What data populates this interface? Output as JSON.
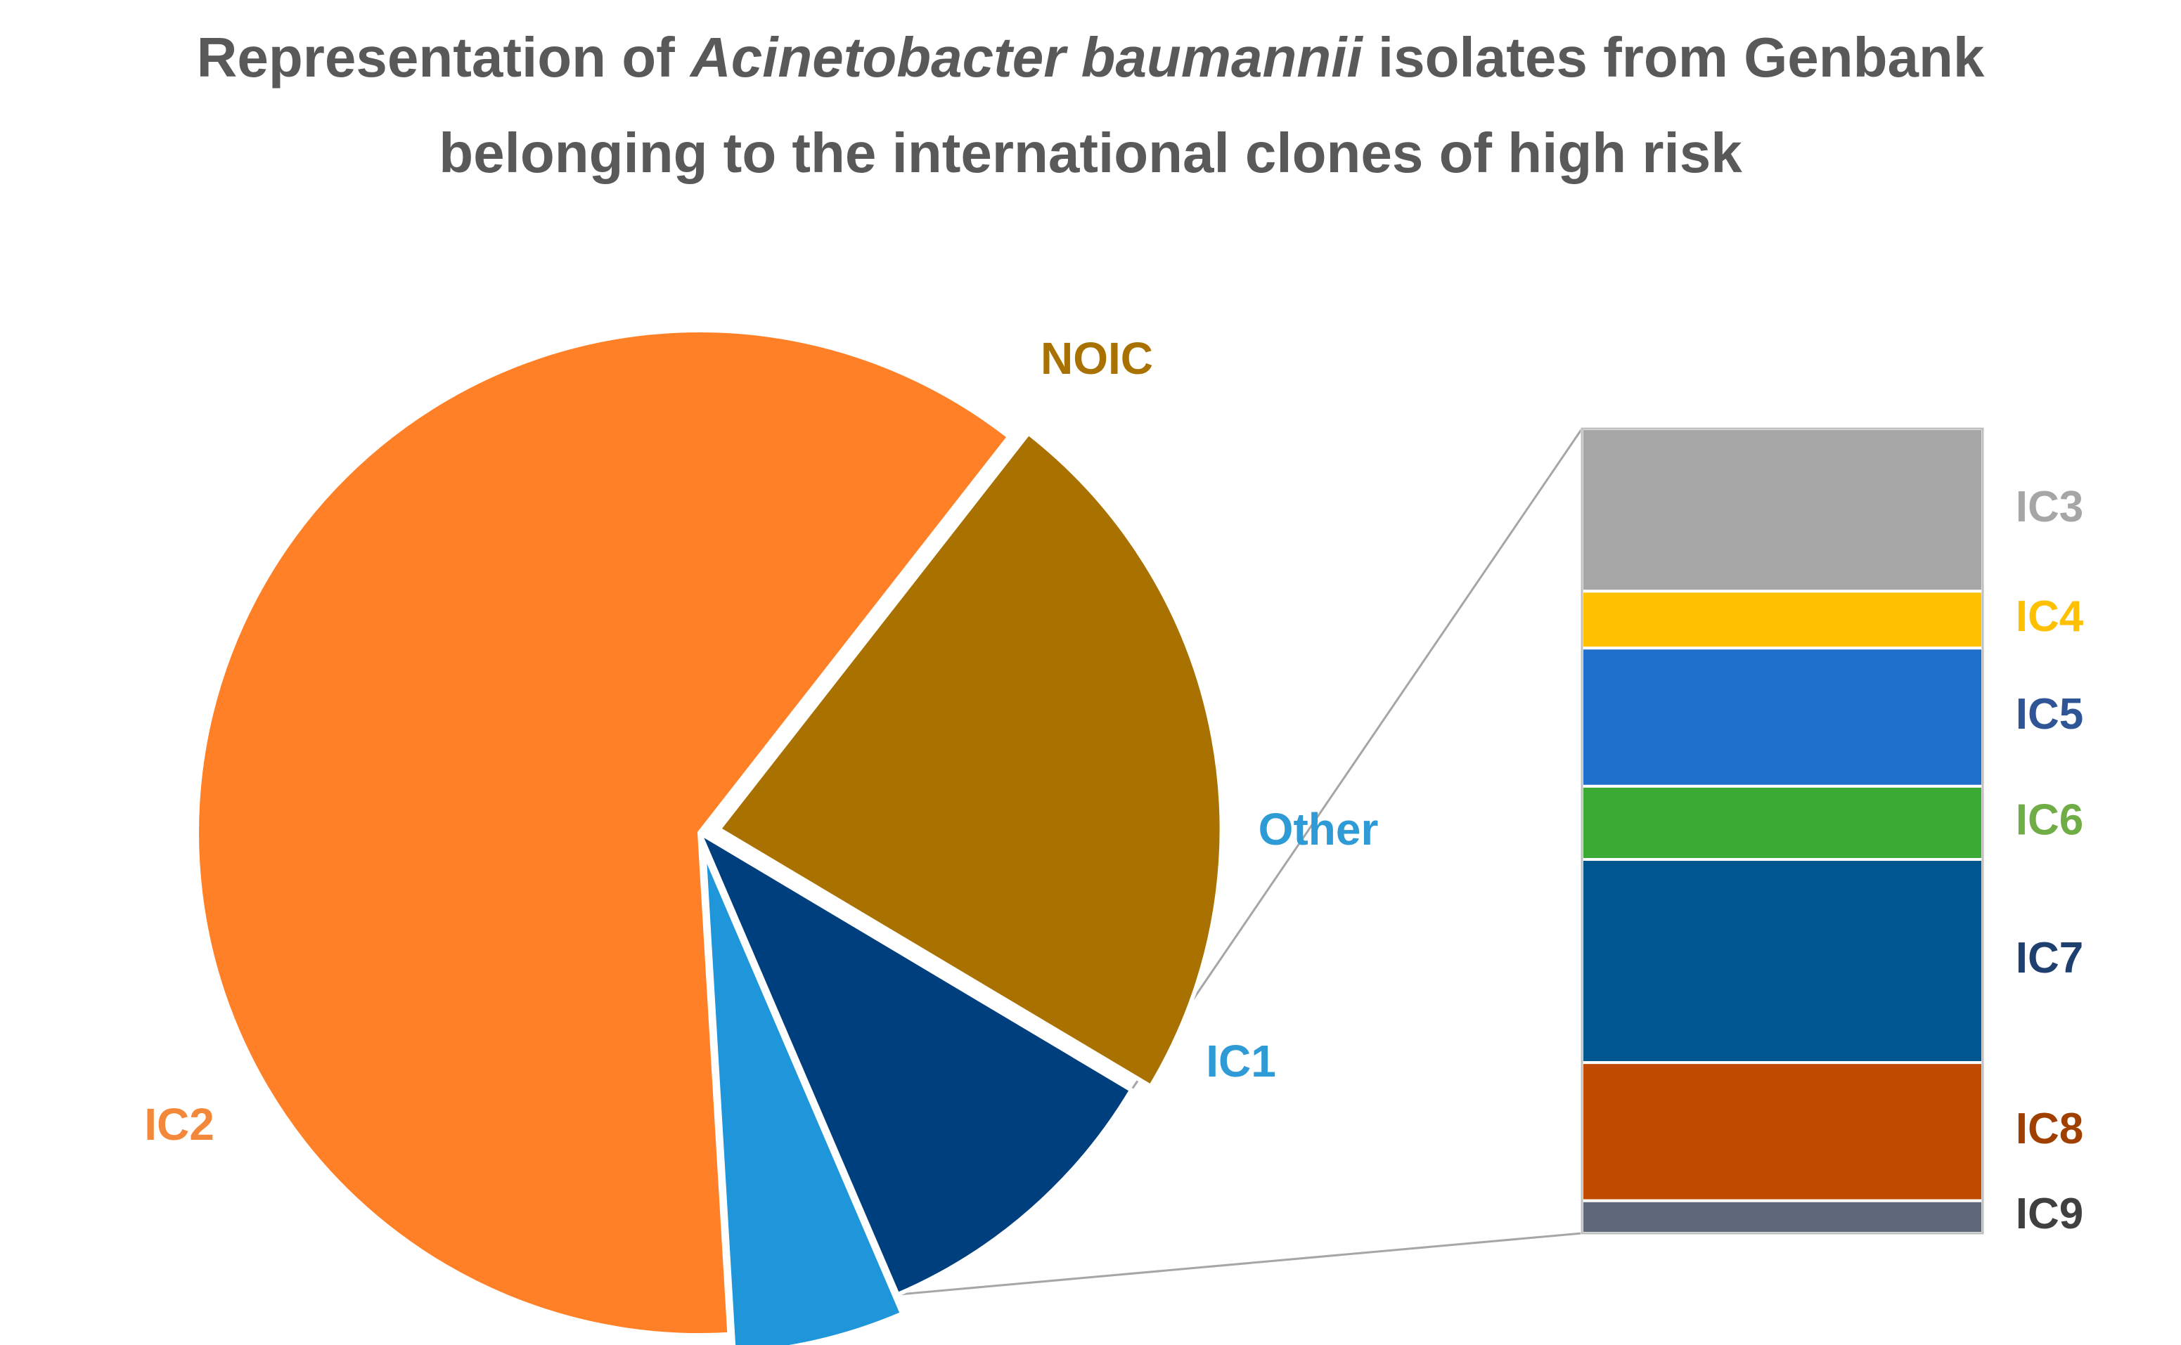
{
  "title": {
    "line1_before": "Representation of ",
    "line1_italic": "Acinetobacter baumannii",
    "line1_after": " isolates from Genbank",
    "line2": "belonging to the international clones of high risk"
  },
  "chart_data": {
    "type": "bar-of-pie",
    "title": "Representation of Acinetobacter baumannii isolates from Genbank belonging to the international clones of high risk",
    "pie": [
      {
        "label": "NOIC",
        "value": 23.0,
        "color": "#A97200"
      },
      {
        "label": "Other",
        "value": 10.0,
        "color": "#003F7E"
      },
      {
        "label": "IC1",
        "value": 5.5,
        "color": "#1F96DA"
      },
      {
        "label": "IC2",
        "value": 61.5,
        "color": "#FF8026"
      }
    ],
    "exploded": [
      "NOIC",
      "IC1"
    ],
    "bar_of": "Other",
    "bar": [
      {
        "label": "IC3",
        "value": 2.0,
        "color": "#A6A6A6",
        "label_color": "#A6A6A6"
      },
      {
        "label": "IC4",
        "value": 0.7,
        "color": "#FFC000",
        "label_color": "#FFC000"
      },
      {
        "label": "IC5",
        "value": 1.7,
        "color": "#1F70CC",
        "label_color": "#2F5597"
      },
      {
        "label": "IC6",
        "value": 0.9,
        "color": "#3AAA35",
        "label_color": "#70AD47"
      },
      {
        "label": "IC7",
        "value": 2.5,
        "color": "#00578F",
        "label_color": "#1F3F6F"
      },
      {
        "label": "IC8",
        "value": 1.7,
        "color": "#C04A00",
        "label_color": "#A04000"
      },
      {
        "label": "IC9",
        "value": 0.4,
        "color": "#5E6878",
        "label_color": "#404040"
      }
    ],
    "pie_label_colors": {
      "NOIC": "#A97200",
      "Other": "#2E9BD6",
      "IC1": "#2E9BD6",
      "IC2": "#F4883A"
    }
  }
}
